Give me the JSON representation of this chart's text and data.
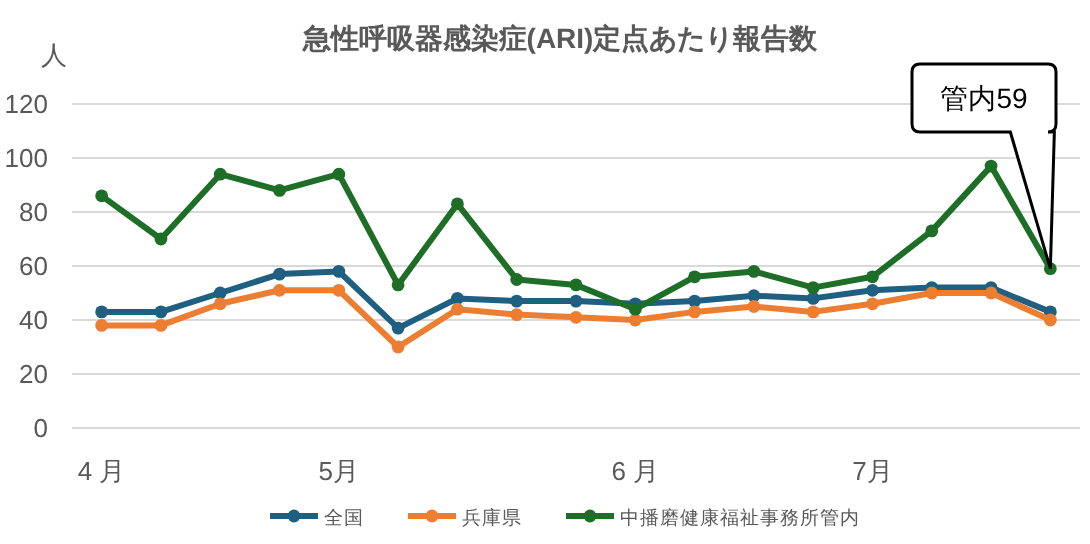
{
  "chart_data": {
    "type": "line",
    "title": "急性呼吸器感染症(ARI)定点あたり報告数",
    "ylabel": "人",
    "categories": [
      "4 月",
      null,
      null,
      null,
      "5月",
      null,
      null,
      null,
      null,
      "6 月",
      null,
      null,
      null,
      "7月",
      null,
      null,
      null
    ],
    "series": [
      {
        "name": "全国",
        "color": "#1f5f82",
        "values": [
          43,
          43,
          50,
          57,
          58,
          37,
          48,
          47,
          47,
          46,
          47,
          49,
          48,
          51,
          52,
          52,
          43
        ]
      },
      {
        "name": "兵庫県",
        "color": "#ed7d31",
        "values": [
          38,
          38,
          46,
          51,
          51,
          30,
          44,
          42,
          41,
          40,
          43,
          45,
          43,
          46,
          50,
          50,
          40
        ]
      },
      {
        "name": "中播磨健康福祉事務所管内",
        "color": "#1e6e28",
        "values": [
          86,
          70,
          94,
          88,
          94,
          53,
          83,
          55,
          53,
          44,
          56,
          58,
          52,
          56,
          73,
          97,
          59
        ]
      }
    ],
    "ylim": [
      0,
      120
    ],
    "yticks": [
      0,
      20,
      40,
      60,
      80,
      100,
      120
    ],
    "grid": "y",
    "legend": "bottom",
    "marker": "circle",
    "annotations": [
      "管内59"
    ]
  }
}
